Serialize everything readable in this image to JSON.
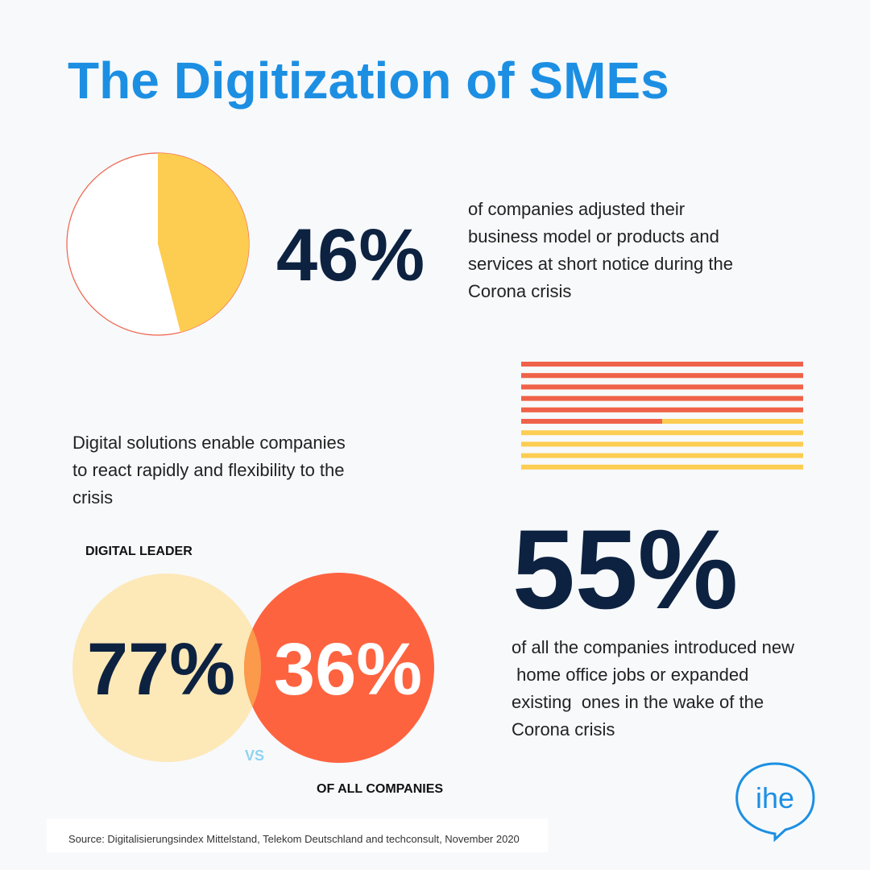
{
  "title": "The Digitization of SMEs",
  "adjusted": {
    "value": 46,
    "label": "46%",
    "lines": [
      "of companies adjusted their",
      "business model or products and",
      "services at short notice during the",
      "Corona crisis"
    ]
  },
  "digital_solutions": {
    "lines": [
      "Digital solutions enable companies",
      "to react rapidly and flexibility to the",
      "crisis"
    ]
  },
  "comparison": {
    "leader_label": "DIGITAL LEADER",
    "leader_value": "77%",
    "vs": "VS",
    "all_label": "OF ALL COMPANIES",
    "all_value": "36%"
  },
  "home_office": {
    "value": 55,
    "label": "55%",
    "lines": [
      "of all the companies introduced new",
      " home office jobs or expanded",
      "existing  ones in the wake of the",
      "Corona crisis"
    ]
  },
  "source": "Source: Digitalisierungsindex Mittelstand, Telekom Deutschland and techconsult, November 2020",
  "logo": "ihe"
}
